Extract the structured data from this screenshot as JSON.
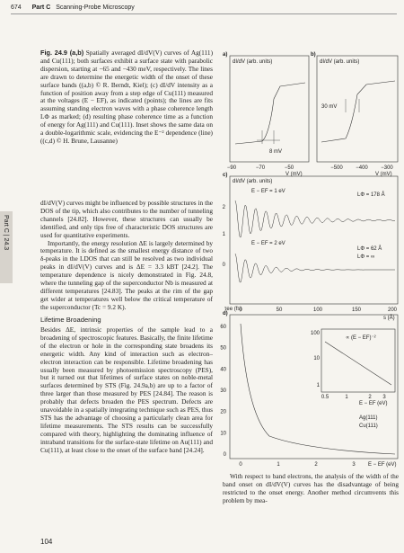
{
  "header": {
    "page": "674",
    "part": "Part C",
    "title": "Scanning-Probe Microscopy"
  },
  "side_tab": "Part C | 24.3",
  "caption": {
    "label": "Fig. 24.9 (a,b)",
    "text": "Spatially averaged dI/dV(V) curves of Ag(111) and Cu(111); both surfaces exhibit a surface state with parabolic dispersion, starting at −65 and −430 meV, respectively. The lines are drawn to determine the energetic width of the onset of these surface bands ((a,b) © R. Berndt, Kiel); (c) dI/dV intensity as a function of position away from a step edge of Cu(111) measured at the voltages (E − EF), as indicated (points); the lines are fits assuming standing electron waves with a phase coherence length LΦ as marked; (d) resulting phase coherence time as a function of energy for Ag(111) and Cu(111). Inset shows the same data on a double-logarithmic scale, evidencing the E⁻² dependence (line) ((c,d) © H. Brune, Lausanne)"
  },
  "body": {
    "paragraphs_before": [
      "dI/dV(V) curves might be influenced by possible structures in the DOS of the tip, which also contributes to the number of tunneling channels [24.82]. However, these structures can usually be identified, and only tips free of characteristic DOS structures are used for quantitative experiments.",
      "Importantly, the energy resolution ΔE is largely determined by temperature. It is defined as the smallest energy distance of two δ-peaks in the LDOS that can still be resolved as two individual peaks in dI/dV(V) curves and is ΔE = 3.3 kBT [24.2]. The temperature dependence is nicely demonstrated in Fig. 24.8, where the tunneling gap of the superconductor Nb is measured at different temperatures [24.83]. The peaks at the rim of the gap get wider at temperatures well below the critical temperature of the superconductor (Tc = 9.2 K)."
    ],
    "heading": "Lifetime Broadening",
    "paragraphs_after": [
      "Besides ΔE, intrinsic properties of the sample lead to a broadening of spectroscopic features. Basically, the finite lifetime of the electron or hole in the corresponding state broadens its energetic width. Any kind of interaction such as electron–electron interaction can be responsible. Lifetime broadening has usually been measured by photoemission spectroscopy (PES), but it turned out that lifetimes of surface states on noble-metal surfaces determined by STS (Fig. 24.9a,b) are up to a factor of three larger than those measured by PES [24.84]. The reason is probably that defects broaden the PES spectrum. Defects are unavoidable in a spatially integrating technique such as PES, thus STS has the advantage of choosing a particularly clean area for lifetime measurements. The STS results can be successfully compared with theory, highlighting the dominating influence of intraband transitions for the surface-state lifetime on Au(111) and Cu(111), at least close to the onset of the surface band [24.24]."
    ],
    "right_text": "With respect to band electrons, the analysis of the width of the band onset on dI/dV(V) curves has the disadvantage of being restricted to the onset energy. Another method circumvents this problem by mea-"
  },
  "figure": {
    "a": {
      "label": "a)",
      "ylabel": "dI/dV (arb. units)",
      "note": "8 mV",
      "xticks": [
        "−90",
        "−70",
        "−50"
      ],
      "xlabel": "V (mV)"
    },
    "b": {
      "label": "b)",
      "ylabel": "dI/dV (arb. units)",
      "note": "30 mV",
      "xticks": [
        "−500",
        "−400",
        "−300"
      ],
      "xlabel": "V (mV)"
    },
    "c": {
      "label": "c)",
      "ylabel": "dI/dV (arb. units)",
      "e1": "E − EF = 1 eV",
      "l1": "LΦ = 178 Å",
      "e2": "E − EF = 2 eV",
      "l2": "LΦ = 62 Å",
      "l3": "LΦ = ∞",
      "yticks": [
        "2",
        "1",
        "0"
      ],
      "xticks": [
        "0",
        "50",
        "100",
        "150",
        "200"
      ],
      "xlabel": "s (Å)"
    },
    "d": {
      "label": "d)",
      "ylabel": "τee (fs)",
      "yticks": [
        "60",
        "50",
        "40",
        "30",
        "20",
        "10",
        "0"
      ],
      "xticks": [
        "0",
        "1",
        "2",
        "3"
      ],
      "xlabel": "E − EF (eV)",
      "legend": [
        "Ag(111)",
        "Cu(111)"
      ],
      "inset_yticks": [
        "100",
        "10",
        "1"
      ],
      "inset_xticks": [
        "0.5",
        "1",
        "2",
        "3"
      ],
      "inset_line": "∝ (E − EF)⁻²",
      "inset_xlabel": "E − EF (eV)"
    }
  },
  "page_number": "104"
}
